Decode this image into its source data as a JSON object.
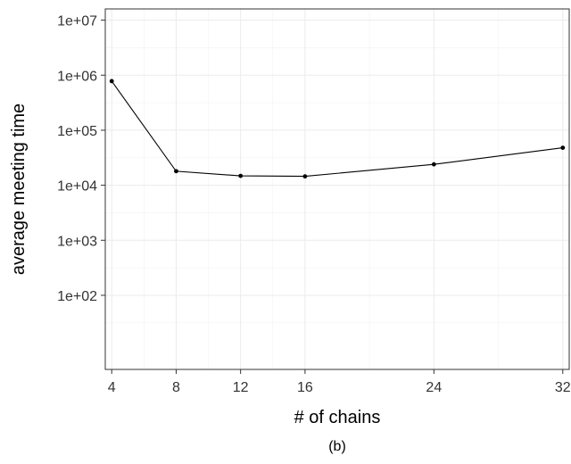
{
  "chart_data": {
    "type": "line",
    "title": "",
    "caption": "(b)",
    "xlabel": "# of chains",
    "ylabel": "average meeting time",
    "x_ticks": [
      4,
      8,
      12,
      16,
      24,
      32
    ],
    "y_ticks": [
      {
        "value": 100,
        "label": "1e+02"
      },
      {
        "value": 1000,
        "label": "1e+03"
      },
      {
        "value": 10000,
        "label": "1e+04"
      },
      {
        "value": 100000,
        "label": "1e+05"
      },
      {
        "value": 1000000,
        "label": "1e+06"
      },
      {
        "value": 10000000,
        "label": "1e+07"
      }
    ],
    "xlim": [
      3.6,
      32.4
    ],
    "ylim": [
      4.5,
      16000000
    ],
    "y_scale": "log",
    "grid": true,
    "series": [
      {
        "x": [
          4,
          8,
          12,
          16,
          24,
          32
        ],
        "y": [
          780000,
          18000,
          14800,
          14500,
          24000,
          48000
        ],
        "color": "#000000"
      }
    ]
  }
}
